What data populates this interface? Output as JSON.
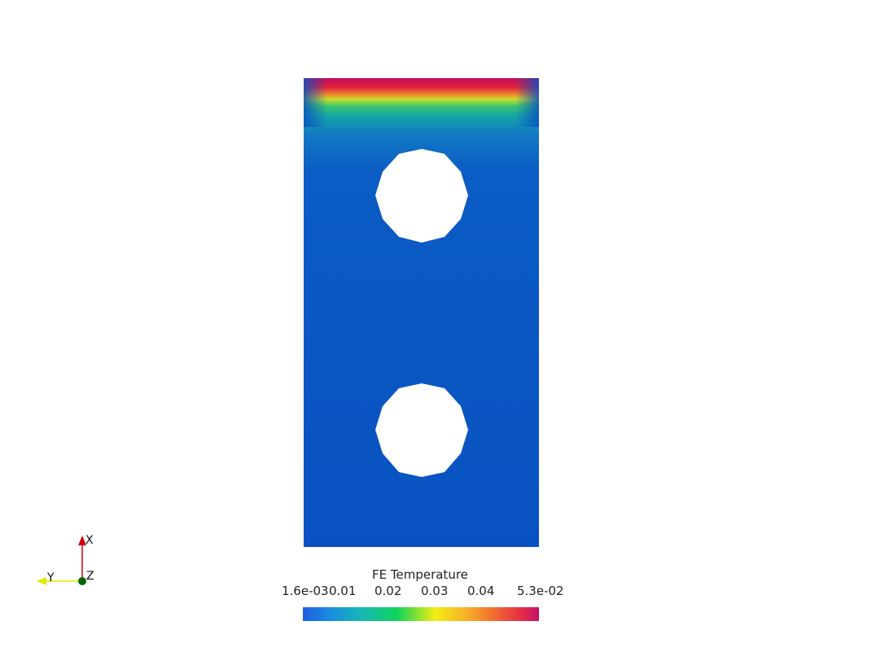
{
  "scalar_bar": {
    "title": "FE Temperature",
    "ticks": [
      "1.6e-03",
      "0.01",
      "0.02",
      "0.03",
      "0.04",
      "5.3e-02"
    ],
    "min": 0.0016,
    "max": 0.053,
    "colors": [
      "#1c5fe0",
      "#16b8b4",
      "#10d45a",
      "#f5ec14",
      "#f2722e",
      "#c5126a"
    ]
  },
  "axes_triad": {
    "x_label": "X",
    "y_label": "Y",
    "z_label": "Z",
    "x_color": "#d40000",
    "y_color": "#e6e600",
    "z_color": "#006400"
  },
  "mesh": {
    "field_base_color": "#0951c2",
    "hot_edge_color": "#c20c5c",
    "holes": 2
  }
}
